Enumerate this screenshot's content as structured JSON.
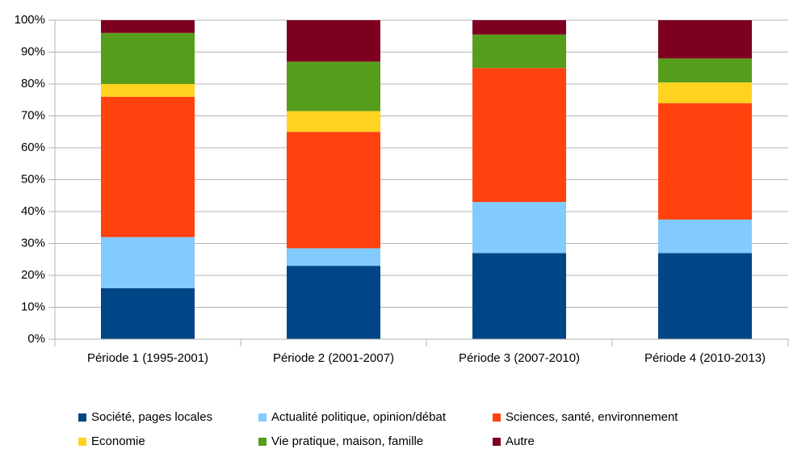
{
  "chart_data": {
    "type": "stacked_bar",
    "categories": [
      "Période 1 (1995-2001)",
      "Période 2 (2001-2007)",
      "Période 3 (2007-2010)",
      "Période 4 (2010-2013)"
    ],
    "series": [
      {
        "name": "Société, pages locales",
        "color": "#004586",
        "values": [
          16,
          23,
          27,
          27
        ]
      },
      {
        "name": "Actualité politique, opinion/débat",
        "color": "#83caff",
        "values": [
          16,
          5.5,
          16,
          10.5
        ]
      },
      {
        "name": "Sciences, santé, environnement",
        "color": "#ff420e",
        "values": [
          44,
          36.5,
          42,
          36.5
        ]
      },
      {
        "name": "Economie",
        "color": "#ffd320",
        "values": [
          4,
          6.5,
          0,
          6.5
        ]
      },
      {
        "name": "Vie pratique, maison, famille",
        "color": "#579d1c",
        "values": [
          16,
          15.5,
          10.5,
          7.5
        ]
      },
      {
        "name": "Autre",
        "color": "#7e0021",
        "values": [
          4,
          13,
          4.5,
          12
        ]
      }
    ],
    "ylim": [
      0,
      100
    ],
    "yticks": [
      {
        "value": 0,
        "label": "0%"
      },
      {
        "value": 10,
        "label": "10%"
      },
      {
        "value": 20,
        "label": "20%"
      },
      {
        "value": 30,
        "label": "30%"
      },
      {
        "value": 40,
        "label": "40%"
      },
      {
        "value": 50,
        "label": "50%"
      },
      {
        "value": 60,
        "label": "60%"
      },
      {
        "value": 70,
        "label": "70%"
      },
      {
        "value": 80,
        "label": "80%"
      },
      {
        "value": 90,
        "label": "90%"
      },
      {
        "value": 100,
        "label": "100%"
      }
    ],
    "grid": true
  }
}
